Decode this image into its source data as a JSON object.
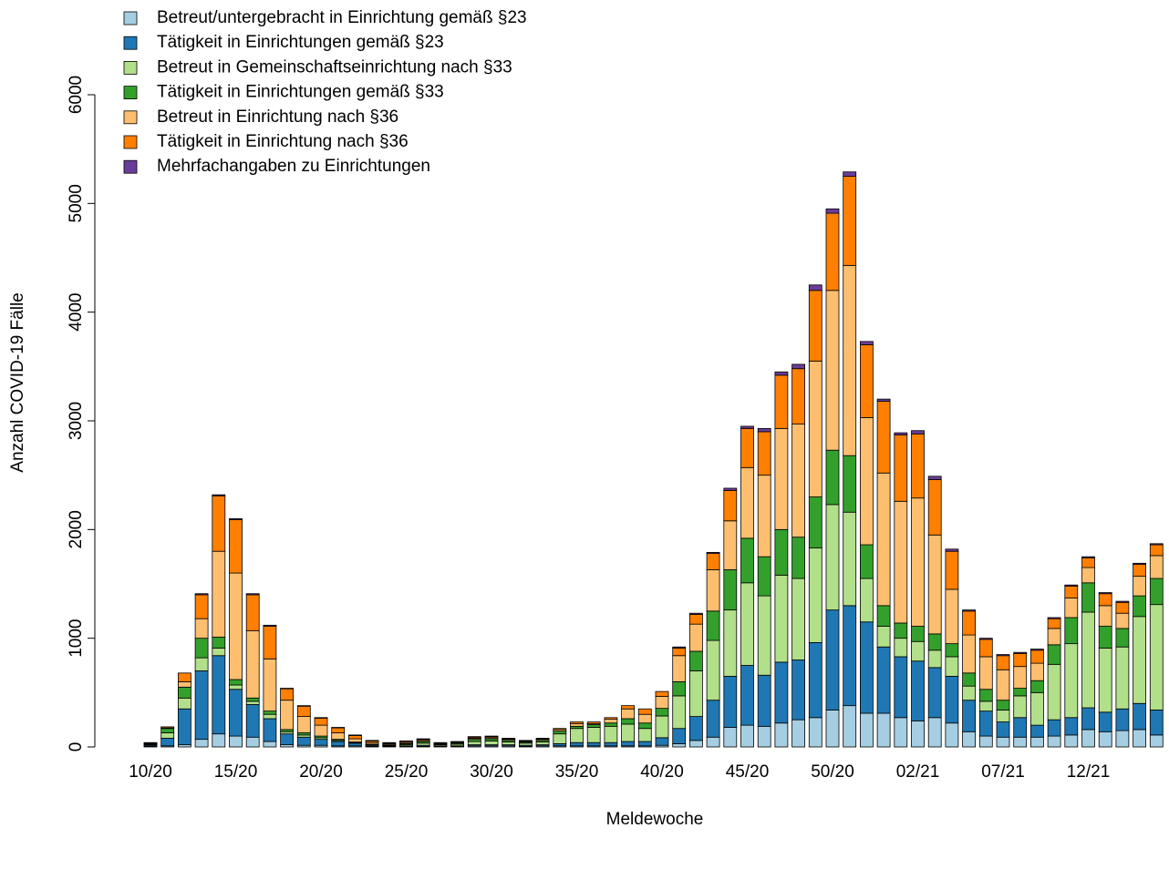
{
  "chart_data": {
    "type": "bar",
    "stacked": true,
    "x_label": "Meldewoche",
    "y_label": "Anzahl COVID-19 Fälle",
    "legend": "topleft",
    "categories": [
      "10/20",
      null,
      null,
      null,
      null,
      "15/20",
      null,
      null,
      null,
      null,
      "20/20",
      null,
      null,
      null,
      null,
      "25/20",
      null,
      null,
      null,
      null,
      "30/20",
      null,
      null,
      null,
      null,
      "35/20",
      null,
      null,
      null,
      null,
      "40/20",
      null,
      null,
      null,
      null,
      "45/20",
      null,
      null,
      null,
      null,
      "50/20",
      null,
      null,
      null,
      null,
      "02/21",
      null,
      null,
      null,
      null,
      "07/21",
      null,
      null,
      null,
      null,
      "12/21",
      null,
      null,
      null,
      null
    ],
    "ylim": [
      0,
      6000
    ],
    "yticks": [
      0,
      1000,
      2000,
      3000,
      4000,
      5000,
      6000
    ],
    "series": [
      {
        "name": "Betreut/untergebracht in Einrichtung gemäß §23",
        "color": "#a6cee3",
        "values": [
          5,
          10,
          20,
          70,
          120,
          100,
          90,
          50,
          20,
          15,
          15,
          10,
          10,
          5,
          5,
          5,
          5,
          5,
          5,
          10,
          10,
          10,
          5,
          10,
          10,
          10,
          10,
          10,
          10,
          10,
          15,
          30,
          60,
          90,
          180,
          200,
          190,
          220,
          250,
          270,
          340,
          380,
          310,
          310,
          270,
          240,
          270,
          220,
          140,
          100,
          90,
          90,
          90,
          100,
          110,
          160,
          140,
          150,
          160,
          110
        ]
      },
      {
        "name": "Tätigkeit in Einrichtungen gemäß §23",
        "color": "#1f78b4",
        "values": [
          10,
          70,
          330,
          630,
          720,
          430,
          300,
          210,
          100,
          75,
          55,
          40,
          25,
          10,
          5,
          5,
          10,
          5,
          5,
          10,
          10,
          10,
          10,
          10,
          20,
          30,
          30,
          30,
          40,
          40,
          70,
          140,
          220,
          340,
          470,
          550,
          470,
          560,
          550,
          690,
          920,
          920,
          840,
          610,
          560,
          550,
          460,
          430,
          290,
          230,
          140,
          180,
          110,
          150,
          160,
          200,
          180,
          200,
          240,
          230
        ]
      },
      {
        "name": "Betreut in Gemeinschaftseinrichtung nach §33",
        "color": "#b2df8a",
        "values": [
          5,
          50,
          100,
          120,
          70,
          40,
          30,
          40,
          20,
          20,
          15,
          10,
          5,
          5,
          5,
          10,
          20,
          10,
          15,
          30,
          35,
          25,
          20,
          25,
          90,
          130,
          140,
          150,
          160,
          120,
          200,
          300,
          420,
          550,
          610,
          760,
          730,
          800,
          750,
          870,
          970,
          860,
          400,
          190,
          170,
          180,
          160,
          180,
          130,
          90,
          110,
          200,
          300,
          510,
          680,
          880,
          590,
          570,
          800,
          970
        ]
      },
      {
        "name": "Tätigkeit in Einrichtungen gemäß §33",
        "color": "#33a02c",
        "values": [
          5,
          40,
          100,
          180,
          100,
          50,
          30,
          30,
          20,
          20,
          15,
          10,
          5,
          5,
          5,
          10,
          15,
          5,
          10,
          20,
          20,
          15,
          10,
          15,
          25,
          20,
          25,
          30,
          50,
          50,
          70,
          130,
          180,
          270,
          370,
          410,
          360,
          420,
          380,
          470,
          500,
          520,
          310,
          190,
          140,
          140,
          150,
          120,
          120,
          110,
          90,
          70,
          110,
          180,
          240,
          270,
          200,
          170,
          190,
          240
        ]
      },
      {
        "name": "Betreut in Einrichtung nach §36",
        "color": "#fdbf6f",
        "values": [
          5,
          5,
          50,
          180,
          790,
          980,
          620,
          480,
          270,
          150,
          100,
          60,
          30,
          15,
          10,
          10,
          10,
          5,
          5,
          10,
          10,
          10,
          5,
          10,
          15,
          25,
          10,
          35,
          90,
          80,
          110,
          240,
          250,
          380,
          450,
          650,
          750,
          930,
          1040,
          1250,
          1470,
          1750,
          1170,
          1220,
          1120,
          1180,
          910,
          500,
          350,
          300,
          280,
          200,
          160,
          150,
          180,
          140,
          190,
          140,
          180,
          210
        ]
      },
      {
        "name": "Tätigkeit in Einrichtung nach §36",
        "color": "#ff7f00",
        "values": [
          5,
          10,
          80,
          220,
          510,
          490,
          330,
          300,
          105,
          95,
          65,
          45,
          30,
          15,
          5,
          10,
          10,
          5,
          5,
          10,
          10,
          5,
          5,
          5,
          10,
          15,
          15,
          15,
          30,
          50,
          45,
          70,
          90,
          150,
          280,
          360,
          400,
          490,
          510,
          650,
          710,
          820,
          670,
          660,
          610,
          590,
          510,
          350,
          220,
          160,
          130,
          120,
          120,
          90,
          110,
          90,
          110,
          100,
          110,
          100
        ]
      },
      {
        "name": "Mehrfachangaben zu Einrichtungen",
        "color": "#6a3d9a",
        "values": [
          5,
          0,
          0,
          10,
          10,
          10,
          10,
          10,
          5,
          5,
          5,
          5,
          5,
          5,
          5,
          5,
          5,
          5,
          5,
          5,
          5,
          5,
          5,
          5,
          0,
          0,
          0,
          0,
          0,
          0,
          0,
          10,
          10,
          10,
          20,
          20,
          30,
          30,
          40,
          50,
          40,
          40,
          30,
          20,
          20,
          30,
          30,
          20,
          10,
          10,
          10,
          10,
          10,
          10,
          10,
          10,
          10,
          10,
          10,
          10
        ]
      }
    ]
  }
}
